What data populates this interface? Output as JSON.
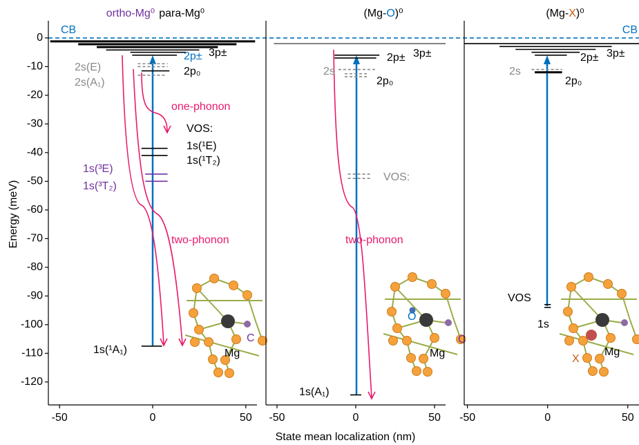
{
  "band_edge": {
    "label": "CB",
    "energy": 0,
    "color": "#0070c0"
  },
  "chart_data": [
    {
      "type": "energy-level",
      "title": [
        {
          "text": "ortho-Mg⁰",
          "color": "#7030a0"
        },
        {
          "text": "para-Mg⁰",
          "color": "#000000"
        }
      ],
      "ylabel": "Energy (meV)",
      "ylim": [
        6,
        -128
      ],
      "yticks": [
        0,
        -10,
        -20,
        -30,
        -40,
        -50,
        -60,
        -70,
        -80,
        -90,
        -100,
        -110,
        -120
      ],
      "xlim": [
        -56,
        56
      ],
      "xticks": [
        -50,
        0,
        50
      ],
      "levels": [
        {
          "y": -1.2,
          "x": [
            -55,
            55
          ],
          "color": "#000000",
          "style": "thick"
        },
        {
          "y": -2.2,
          "x": [
            -40,
            45
          ],
          "color": "#000000",
          "style": "thick"
        },
        {
          "y": -3.2,
          "x": [
            -30,
            35
          ],
          "color": "#000000",
          "style": "thick"
        },
        {
          "y": -4.2,
          "x": [
            -25,
            25
          ],
          "color": "#000000",
          "style": "solid"
        },
        {
          "y": -5,
          "x": [
            -12,
            18
          ],
          "color": "#000000",
          "style": "solid"
        },
        {
          "y": -6,
          "x": [
            -11,
            13
          ],
          "color": "#000000",
          "style": "solid"
        },
        {
          "y": -9,
          "x": [
            -8,
            8
          ],
          "color": "#888888",
          "style": "dashed"
        },
        {
          "y": -10,
          "x": [
            -8,
            8
          ],
          "color": "#888888",
          "style": "dashed"
        },
        {
          "y": -11.5,
          "x": [
            -6,
            9
          ],
          "color": "#000000",
          "style": "solid"
        },
        {
          "y": -13,
          "x": [
            -8,
            7
          ],
          "color": "#888888",
          "style": "dashed"
        },
        {
          "y": -38.5,
          "x": [
            -6,
            8
          ],
          "color": "#000000",
          "style": "solid"
        },
        {
          "y": -41,
          "x": [
            -6,
            8
          ],
          "color": "#000000",
          "style": "solid"
        },
        {
          "y": -47.5,
          "x": [
            -4,
            8
          ],
          "color": "#7030a0",
          "style": "solid"
        },
        {
          "y": -50,
          "x": [
            -4,
            8
          ],
          "color": "#7030a0",
          "style": "solid"
        },
        {
          "y": -107.5,
          "x": [
            -6,
            5
          ],
          "color": "#000000",
          "style": "solid"
        }
      ],
      "labels": [
        {
          "text": "2s(E)",
          "color": "#888888"
        },
        {
          "text": "2s(A₁)",
          "color": "#888888"
        },
        {
          "text": "2p±",
          "color": "#0070c0"
        },
        {
          "text": "3p±",
          "color": "#000000"
        },
        {
          "text": "2p₀",
          "color": "#000000"
        },
        {
          "text": "one-phonon",
          "color": "#e8196b"
        },
        {
          "text": "VOS:",
          "color": "#000000"
        },
        {
          "text": "1s(¹E)",
          "color": "#000000"
        },
        {
          "text": "1s(¹T₂)",
          "color": "#000000"
        },
        {
          "text": "1s(³E)",
          "color": "#7030a0"
        },
        {
          "text": "1s(³T₂)",
          "color": "#7030a0"
        },
        {
          "text": "two-phonon",
          "color": "#e8196b"
        },
        {
          "text": "1s(¹A₁)",
          "color": "#000000"
        }
      ],
      "molecule_labels": [
        {
          "text": "C",
          "color": "#7030a0"
        },
        {
          "text": "Mg",
          "color": "#000000"
        }
      ]
    },
    {
      "type": "energy-level",
      "title": [
        {
          "text": "(Mg-",
          "color": "#000000"
        },
        {
          "text": "O",
          "color": "#0070c0"
        },
        {
          "text": ")⁰",
          "color": "#000000"
        }
      ],
      "xlabel": "State mean localization (nm)",
      "ylim": [
        6,
        -128
      ],
      "xlim": [
        -57,
        57
      ],
      "xticks": [
        -50,
        0,
        50
      ],
      "levels": [
        {
          "y": -2,
          "x": [
            -52,
            57
          ],
          "color": "#666666",
          "style": "solid"
        },
        {
          "y": -6,
          "x": [
            -13.5,
            15
          ],
          "color": "#000000",
          "style": "solid"
        },
        {
          "y": -7,
          "x": [
            -13.5,
            13
          ],
          "color": "#000000",
          "style": "solid"
        },
        {
          "y": -11,
          "x": [
            -11,
            13
          ],
          "color": "#888888",
          "style": "dashed"
        },
        {
          "y": -12.5,
          "x": [
            -7,
            8
          ],
          "color": "#888888",
          "style": "dashed"
        },
        {
          "y": -13.5,
          "x": [
            -7,
            8
          ],
          "color": "#888888",
          "style": "dashed"
        },
        {
          "y": -47.5,
          "x": [
            -5,
            10
          ],
          "color": "#888888",
          "style": "dashed"
        },
        {
          "y": -49,
          "x": [
            -5,
            10
          ],
          "color": "#888888",
          "style": "dashed"
        },
        {
          "y": -124.5,
          "x": [
            -3.5,
            3.5
          ],
          "color": "#000000",
          "style": "solid"
        }
      ],
      "labels": [
        {
          "text": "2s",
          "color": "#888888"
        },
        {
          "text": "2p±",
          "color": "#000000"
        },
        {
          "text": "3p±",
          "color": "#000000"
        },
        {
          "text": "2p₀",
          "color": "#000000"
        },
        {
          "text": "VOS:",
          "color": "#888888"
        },
        {
          "text": "two-phonon",
          "color": "#e8196b"
        },
        {
          "text": "1s(A₁)",
          "color": "#000000"
        }
      ],
      "molecule_labels": [
        {
          "text": "O",
          "color": "#0070c0"
        },
        {
          "text": "Mg",
          "color": "#000000"
        },
        {
          "text": "C",
          "color": "#7030a0"
        }
      ]
    },
    {
      "type": "energy-level",
      "title": [
        {
          "text": "(Mg-",
          "color": "#000000"
        },
        {
          "text": "X",
          "color": "#c55a11"
        },
        {
          "text": ")⁰",
          "color": "#000000"
        }
      ],
      "ylim": [
        6,
        -128
      ],
      "xlim": [
        -52,
        57
      ],
      "xticks": [
        -50,
        0,
        50
      ],
      "levels": [
        {
          "y": -2,
          "x": [
            -52,
            57
          ],
          "color": "#000000",
          "style": "solid"
        },
        {
          "y": -3,
          "x": [
            -30,
            40
          ],
          "color": "#000000",
          "style": "solid"
        },
        {
          "y": -4,
          "x": [
            -20,
            30
          ],
          "color": "#000000",
          "style": "solid"
        },
        {
          "y": -5,
          "x": [
            -10,
            20
          ],
          "color": "#000000",
          "style": "solid"
        },
        {
          "y": -6,
          "x": [
            -8,
            12
          ],
          "color": "#000000",
          "style": "solid"
        },
        {
          "y": -11,
          "x": [
            -10,
            9
          ],
          "color": "#888888",
          "style": "dashed"
        },
        {
          "y": -12,
          "x": [
            -8,
            9
          ],
          "color": "#000000",
          "style": "thick"
        },
        {
          "y": -93,
          "x": [
            -2,
            2
          ],
          "color": "#000000",
          "style": "solid"
        },
        {
          "y": -94,
          "x": [
            -2,
            2
          ],
          "color": "#000000",
          "style": "solid"
        }
      ],
      "labels": [
        {
          "text": "2s",
          "color": "#888888"
        },
        {
          "text": "2p±",
          "color": "#000000"
        },
        {
          "text": "3p±",
          "color": "#000000"
        },
        {
          "text": "2p₀",
          "color": "#000000"
        },
        {
          "text": "VOS",
          "color": "#000000"
        },
        {
          "text": "1s",
          "color": "#000000"
        }
      ],
      "molecule_labels": [
        {
          "text": "X",
          "color": "#c55a11"
        },
        {
          "text": "Mg",
          "color": "#000000"
        }
      ]
    }
  ]
}
